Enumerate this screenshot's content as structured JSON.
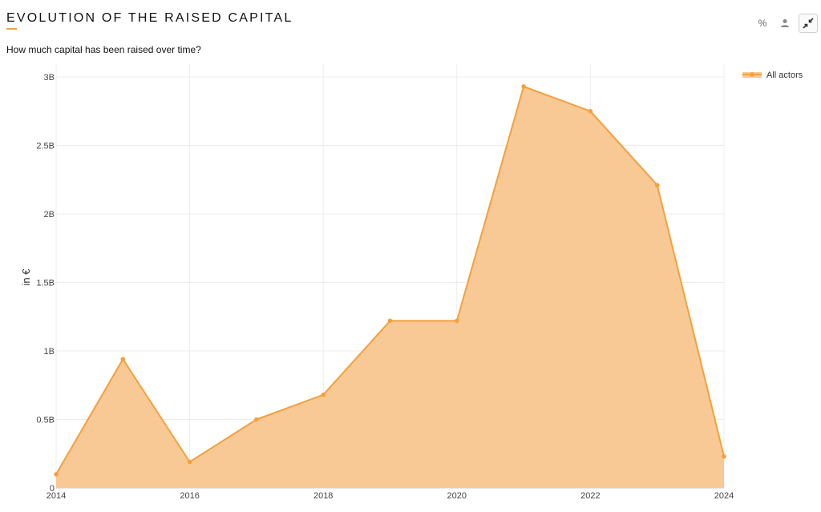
{
  "header": {
    "title": "EVOLUTION OF THE RAISED CAPITAL",
    "subtitle": "How much capital has been raised over time?"
  },
  "toolbar": {
    "percent_label": "%",
    "user_icon": "user-icon",
    "collapse_icon": "collapse-icon"
  },
  "chart_data": {
    "type": "area",
    "title": "EVOLUTION OF THE RAISED CAPITAL",
    "subtitle": "How much capital has been raised over time?",
    "xlabel": "",
    "ylabel": "in €",
    "x": [
      2014,
      2015,
      2016,
      2017,
      2018,
      2019,
      2020,
      2021,
      2022,
      2023,
      2024
    ],
    "series": [
      {
        "name": "All actors",
        "values": [
          0.1,
          0.94,
          0.19,
          0.5,
          0.68,
          1.22,
          1.22,
          2.93,
          2.75,
          2.21,
          0.23
        ]
      }
    ],
    "value_unit": "B",
    "xlim": [
      2014,
      2024
    ],
    "ylim": [
      0,
      3
    ],
    "xticks": [
      "2014",
      "2016",
      "2018",
      "2020",
      "2022",
      "2024"
    ],
    "xtick_values": [
      2014,
      2016,
      2018,
      2020,
      2022,
      2024
    ],
    "yticks": [
      "0",
      "0.5B",
      "1B",
      "1.5B",
      "2B",
      "2.5B",
      "3B"
    ],
    "ytick_values": [
      0,
      0.5,
      1,
      1.5,
      2,
      2.5,
      3
    ],
    "grid": true,
    "legend_position": "top-right",
    "colors": {
      "line": "#f5a03c",
      "fill": "#f8c995",
      "grid": "#ececec"
    }
  }
}
